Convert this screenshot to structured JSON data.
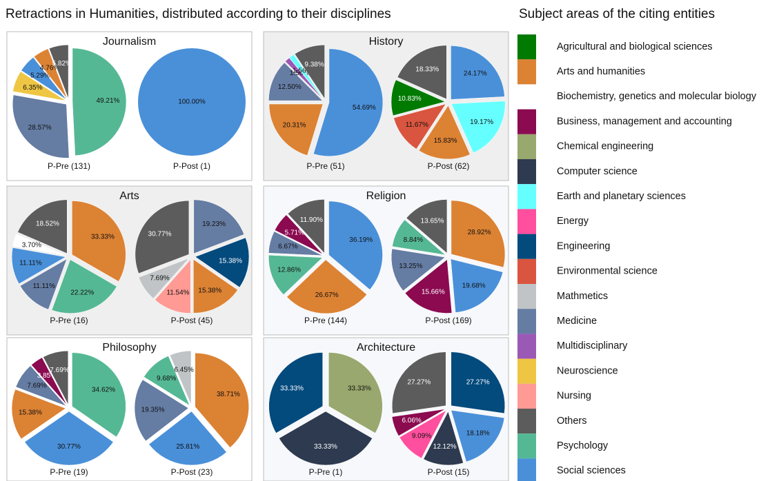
{
  "title": "Retractions in Humanities, distributed according to their disciplines",
  "legend": {
    "title": "Subject areas of the citing entities",
    "items": [
      {
        "name": "Agricultural and biological sciences",
        "color": "#007a00"
      },
      {
        "name": "Arts and humanities",
        "color": "#dc8233"
      },
      {
        "name": "Biochemistry, genetics and molecular biology",
        "color": "#ffffff"
      },
      {
        "name": "Business, management and accounting",
        "color": "#8b0a50"
      },
      {
        "name": "Chemical engineering",
        "color": "#98a86e"
      },
      {
        "name": "Computer science",
        "color": "#2d3a4f"
      },
      {
        "name": "Earth and planetary sciences",
        "color": "#66ffff"
      },
      {
        "name": "Energy",
        "color": "#ff4f9e"
      },
      {
        "name": "Engineering",
        "color": "#034a7d"
      },
      {
        "name": "Environmental science",
        "color": "#d9553f"
      },
      {
        "name": "Mathmetics",
        "color": "#c0c4c6"
      },
      {
        "name": "Medicine",
        "color": "#657ca3"
      },
      {
        "name": "Multidisciplinary",
        "color": "#9b59b6"
      },
      {
        "name": "Neuroscience",
        "color": "#eec643"
      },
      {
        "name": "Nursing",
        "color": "#ff9a94"
      },
      {
        "name": "Others",
        "color": "#5c5c5c"
      },
      {
        "name": "Psychology",
        "color": "#55b895"
      },
      {
        "name": "Social sciences",
        "color": "#4a90d9"
      }
    ]
  },
  "chart_data": [
    {
      "type": "pie",
      "title": "Journalism",
      "pies": [
        {
          "label": "P-Pre (131)",
          "categories": [
            "Psychology",
            "Medicine",
            "Neuroscience",
            "Social sciences",
            "Arts and humanities",
            "Others"
          ],
          "values": [
            49.21,
            28.57,
            6.35,
            5.29,
            4.76,
            5.82
          ],
          "value_labels": [
            "49.21%",
            "28.57%",
            "6.35%",
            "5.29%",
            "4.76%",
            "5.82%"
          ]
        },
        {
          "label": "P-Post (1)",
          "categories": [
            "Social sciences"
          ],
          "values": [
            100
          ],
          "value_labels": [
            "100.00%"
          ]
        }
      ]
    },
    {
      "type": "pie",
      "title": "History",
      "pies": [
        {
          "label": "P-Pre (51)",
          "categories": [
            "Social sciences",
            "Arts and humanities",
            "Medicine",
            "Multidisciplinary",
            "Earth and planetary sciences",
            "Others"
          ],
          "values": [
            54.69,
            20.31,
            12.5,
            1.56,
            1.56,
            9.38
          ],
          "value_labels": [
            "54.69%",
            "20.31%",
            "12.50%",
            "1.56%",
            "1.56%",
            "9.38%"
          ]
        },
        {
          "label": "P-Post (62)",
          "categories": [
            "Social sciences",
            "Earth and planetary sciences",
            "Arts and humanities",
            "Environmental science",
            "Agricultural and biological sciences",
            "Others"
          ],
          "values": [
            24.17,
            19.17,
            15.83,
            11.67,
            10.83,
            18.33
          ],
          "value_labels": [
            "24.17%",
            "19.17%",
            "15.83%",
            "11.67%",
            "10.83%",
            "18.33%"
          ]
        }
      ]
    },
    {
      "type": "pie",
      "title": "Arts",
      "pies": [
        {
          "label": "P-Pre (16)",
          "categories": [
            "Arts and humanities",
            "Psychology",
            "Medicine",
            "Social sciences",
            "Biochemistry, genetics and molecular biology",
            "Others"
          ],
          "values": [
            33.33,
            22.22,
            11.11,
            11.11,
            3.7,
            18.52
          ],
          "value_labels": [
            "33.33%",
            "22.22%",
            "11.11%",
            "11.11%",
            "3.70%",
            "18.52%"
          ]
        },
        {
          "label": "P-Post (45)",
          "categories": [
            "Medicine",
            "Engineering",
            "Arts and humanities",
            "Nursing",
            "Mathmetics",
            "Others"
          ],
          "values": [
            19.23,
            15.38,
            15.38,
            11.54,
            7.69,
            30.77
          ],
          "value_labels": [
            "19.23%",
            "15.38%",
            "15.38%",
            "11.54%",
            "7.69%",
            "30.77%"
          ]
        }
      ]
    },
    {
      "type": "pie",
      "title": "Religion",
      "pies": [
        {
          "label": "P-Pre (144)",
          "categories": [
            "Social sciences",
            "Arts and humanities",
            "Psychology",
            "Medicine",
            "Business, management and accounting",
            "Others"
          ],
          "values": [
            36.19,
            26.67,
            12.86,
            6.67,
            5.71,
            11.9
          ],
          "value_labels": [
            "36.19%",
            "26.67%",
            "12.86%",
            "6.67%",
            "5.71%",
            "11.90%"
          ]
        },
        {
          "label": "P-Post (169)",
          "categories": [
            "Arts and humanities",
            "Social sciences",
            "Business, management and accounting",
            "Medicine",
            "Psychology",
            "Others"
          ],
          "values": [
            28.92,
            19.68,
            15.66,
            13.25,
            8.84,
            13.65
          ],
          "value_labels": [
            "28.92%",
            "19.68%",
            "15.66%",
            "13.25%",
            "8.84%",
            "13.65%"
          ]
        }
      ]
    },
    {
      "type": "pie",
      "title": "Philosophy",
      "pies": [
        {
          "label": "P-Pre (19)",
          "categories": [
            "Psychology",
            "Social sciences",
            "Arts and humanities",
            "Medicine",
            "Business, management and accounting",
            "Others"
          ],
          "values": [
            34.62,
            30.77,
            15.38,
            7.69,
            3.85,
            7.69
          ],
          "value_labels": [
            "34.62%",
            "30.77%",
            "15.38%",
            "7.69%",
            "3.85%",
            "7.69%"
          ]
        },
        {
          "label": "P-Post (23)",
          "categories": [
            "Arts and humanities",
            "Social sciences",
            "Medicine",
            "Psychology",
            "Mathmetics"
          ],
          "values": [
            38.71,
            25.81,
            19.35,
            9.68,
            6.45
          ],
          "value_labels": [
            "38.71%",
            "25.81%",
            "19.35%",
            "9.68%",
            "6.45%"
          ]
        }
      ]
    },
    {
      "type": "pie",
      "title": "Architecture",
      "pies": [
        {
          "label": "P-Pre (1)",
          "categories": [
            "Chemical engineering",
            "Computer science",
            "Engineering"
          ],
          "values": [
            33.33,
            33.33,
            33.33
          ],
          "value_labels": [
            "33.33%",
            "33.33%",
            "33.33%"
          ]
        },
        {
          "label": "P-Post (15)",
          "categories": [
            "Engineering",
            "Social sciences",
            "Computer science",
            "Energy",
            "Business, management and accounting",
            "Others"
          ],
          "values": [
            27.27,
            18.18,
            12.12,
            9.09,
            6.06,
            27.27
          ],
          "value_labels": [
            "27.27%",
            "18.18%",
            "12.12%",
            "9.09%",
            "6.06%",
            "27.27%"
          ]
        }
      ]
    }
  ]
}
